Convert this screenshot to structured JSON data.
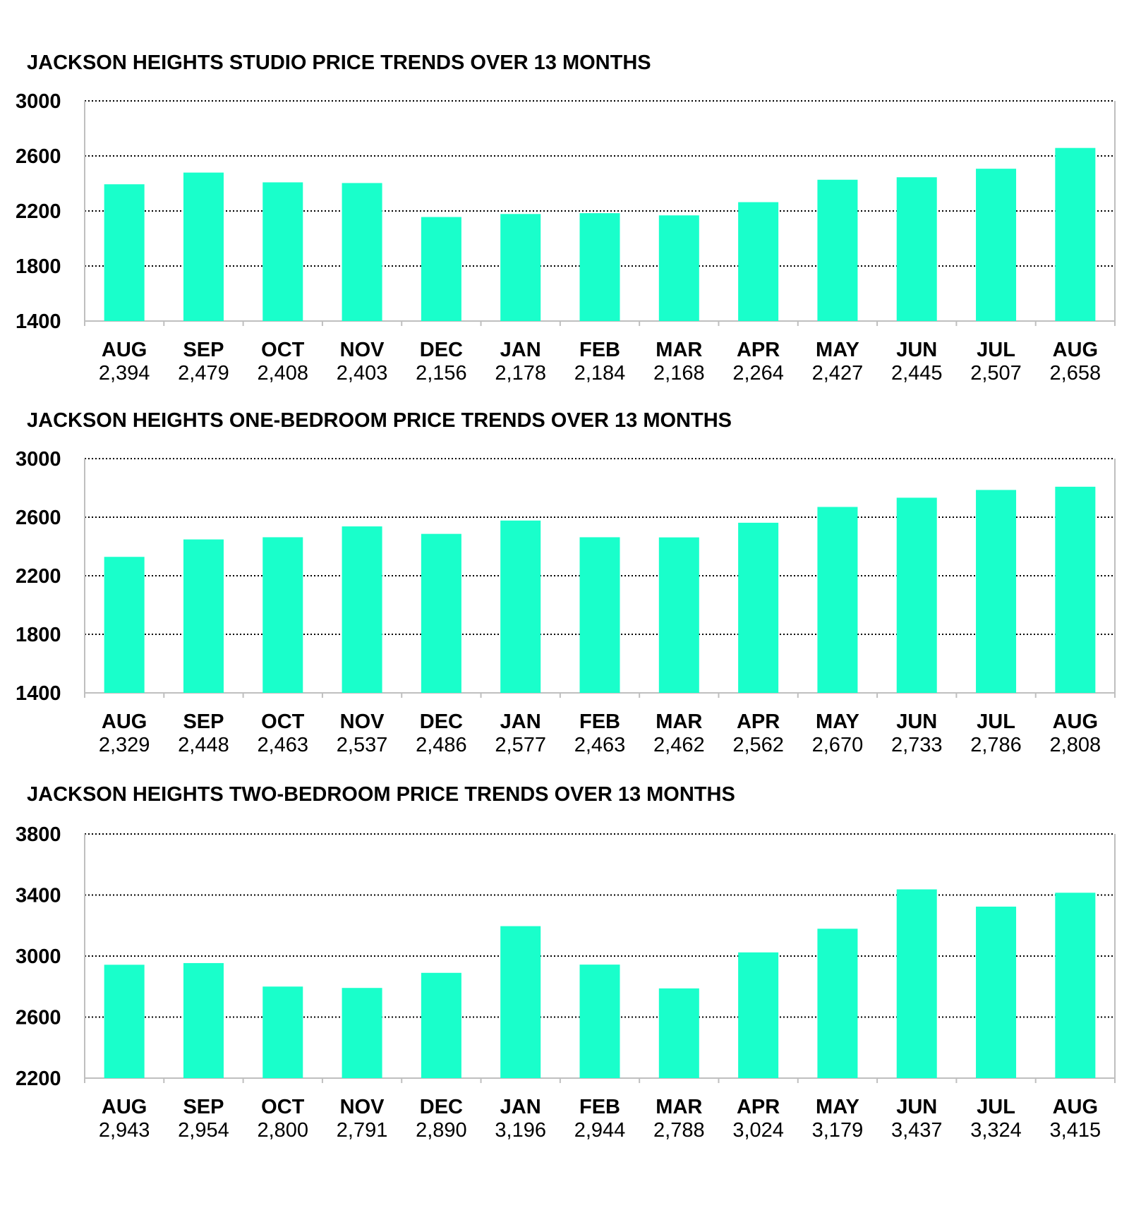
{
  "colors": {
    "bar": "#19FFCB",
    "grid": "#000000",
    "axis": "#BFBFBF"
  },
  "chart_data": [
    {
      "type": "bar",
      "title": "JACKSON HEIGHTS STUDIO PRICE TRENDS OVER 13 MONTHS",
      "categories": [
        "AUG",
        "SEP",
        "OCT",
        "NOV",
        "DEC",
        "JAN",
        "FEB",
        "MAR",
        "APR",
        "MAY",
        "JUN",
        "JUL",
        "AUG"
      ],
      "values": [
        2394,
        2479,
        2408,
        2403,
        2156,
        2178,
        2184,
        2168,
        2264,
        2427,
        2445,
        2507,
        2658
      ],
      "value_labels": [
        "2,394",
        "2,479",
        "2,408",
        "2,403",
        "2,156",
        "2,178",
        "2,184",
        "2,168",
        "2,264",
        "2,427",
        "2,445",
        "2,507",
        "2,658"
      ],
      "yticks": [
        1400,
        1800,
        2200,
        2600,
        3000
      ],
      "ylim": [
        1400,
        3000
      ],
      "grid": "dotted horizontal",
      "legend": "none"
    },
    {
      "type": "bar",
      "title": "JACKSON HEIGHTS ONE-BEDROOM PRICE TRENDS OVER 13 MONTHS",
      "categories": [
        "AUG",
        "SEP",
        "OCT",
        "NOV",
        "DEC",
        "JAN",
        "FEB",
        "MAR",
        "APR",
        "MAY",
        "JUN",
        "JUL",
        "AUG"
      ],
      "values": [
        2329,
        2448,
        2463,
        2537,
        2486,
        2577,
        2463,
        2462,
        2562,
        2670,
        2733,
        2786,
        2808
      ],
      "value_labels": [
        "2,329",
        "2,448",
        "2,463",
        "2,537",
        "2,486",
        "2,577",
        "2,463",
        "2,462",
        "2,562",
        "2,670",
        "2,733",
        "2,786",
        "2,808"
      ],
      "yticks": [
        1400,
        1800,
        2200,
        2600,
        3000
      ],
      "ylim": [
        1400,
        3000
      ],
      "grid": "dotted horizontal",
      "legend": "none"
    },
    {
      "type": "bar",
      "title": "JACKSON HEIGHTS TWO-BEDROOM PRICE TRENDS OVER 13 MONTHS",
      "categories": [
        "AUG",
        "SEP",
        "OCT",
        "NOV",
        "DEC",
        "JAN",
        "FEB",
        "MAR",
        "APR",
        "MAY",
        "JUN",
        "JUL",
        "AUG"
      ],
      "values": [
        2943,
        2954,
        2800,
        2791,
        2890,
        3196,
        2944,
        2788,
        3024,
        3179,
        3437,
        3324,
        3415
      ],
      "value_labels": [
        "2,943",
        "2,954",
        "2,800",
        "2,791",
        "2,890",
        "3,196",
        "2,944",
        "2,788",
        "3,024",
        "3,179",
        "3,437",
        "3,324",
        "3,415"
      ],
      "yticks": [
        2200,
        2600,
        3000,
        3400,
        3800
      ],
      "ylim": [
        2200,
        3800
      ],
      "grid": "dotted horizontal",
      "legend": "none"
    }
  ]
}
